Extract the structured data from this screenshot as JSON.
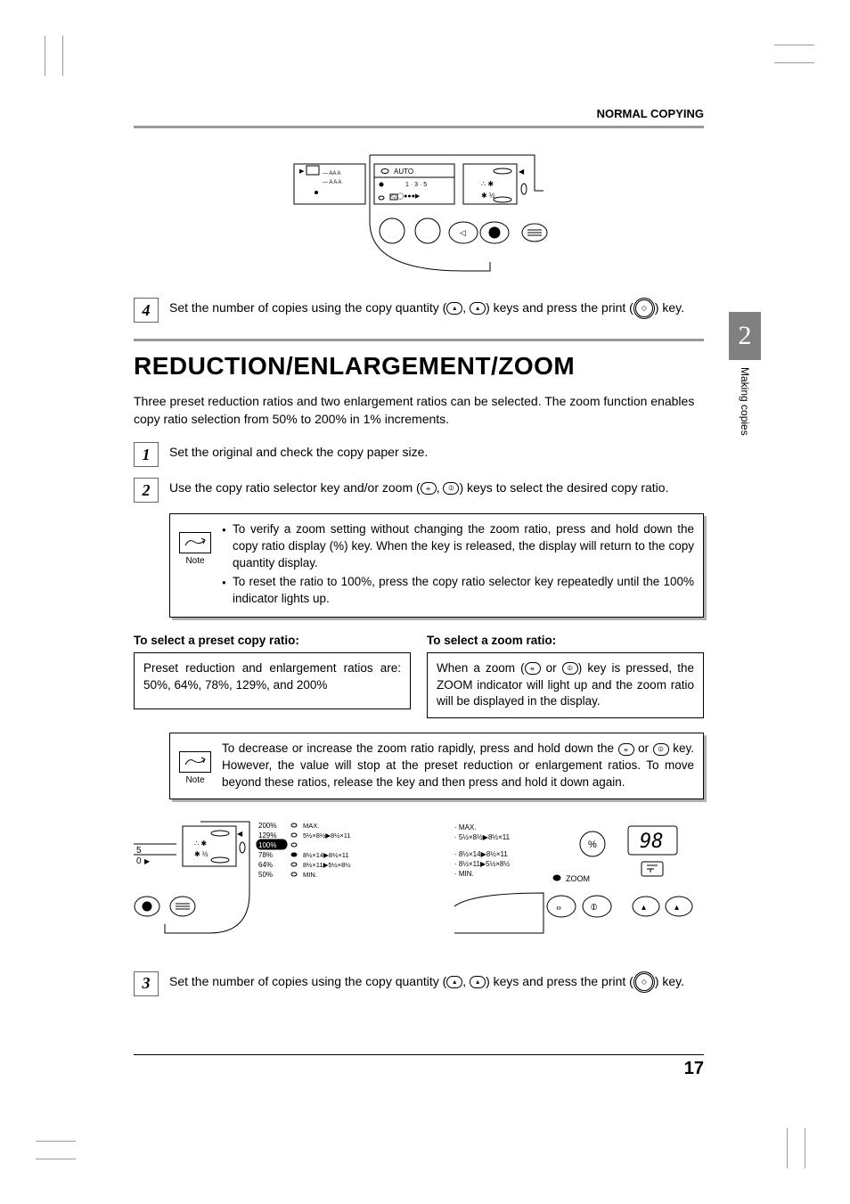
{
  "header": {
    "section": "NORMAL COPYING"
  },
  "chapter": {
    "number": "2",
    "label": "Making copies"
  },
  "step4": {
    "number": "4",
    "text_before": "Set the number of copies using the copy quantity (",
    "text_mid": ", ",
    "text_after": ") keys and press the print (",
    "text_end": ") key."
  },
  "section_title": "REDUCTION/ENLARGEMENT/ZOOM",
  "intro": "Three preset reduction ratios and two enlargement ratios can be selected. The zoom function enables copy ratio selection from 50% to 200% in 1% increments.",
  "step1": {
    "number": "1",
    "text": "Set the original and check the copy paper size."
  },
  "step2": {
    "number": "2",
    "text_before": "Use the copy ratio selector key and/or zoom (",
    "text_mid": ", ",
    "text_after": ") keys to select the desired copy ratio."
  },
  "note1": {
    "label": "Note",
    "bullet1": "To verify a zoom setting without changing the zoom ratio, press and hold down the  copy ratio display (%) key. When the key is released, the display will return to the copy quantity display.",
    "bullet2": "To reset the ratio to 100%, press the copy ratio selector key repeatedly until the 100% indicator lights up."
  },
  "preset": {
    "heading": "To select a preset copy ratio:",
    "body": "Preset reduction and enlargement ratios are: 50%, 64%, 78%, 129%, and 200%"
  },
  "zoom": {
    "heading": "To select a zoom ratio:",
    "body_before": "When a zoom (",
    "body_mid": " or ",
    "body_after": ") key is pressed, the ZOOM indicator will light up and the zoom ratio will be displayed in the display."
  },
  "note2": {
    "label": "Note",
    "text_before": "To decrease or increase the zoom ratio rapidly, press and hold down the ",
    "text_mid": " or ",
    "text_after": " key. However, the value will stop at the preset reduction or enlargement ratios. To move beyond these ratios, release the key and then press and hold it down again."
  },
  "preset_diagram": {
    "ratios": [
      {
        "pct": "200%",
        "note": "MAX."
      },
      {
        "pct": "129%",
        "note": "5½×8½▶8½×11"
      },
      {
        "pct": "100%",
        "note": "",
        "highlighted": true
      },
      {
        "pct": "78%",
        "note": "8½×14▶8½×11"
      },
      {
        "pct": "64%",
        "note": "8½×11▶5½×8½"
      },
      {
        "pct": "50%",
        "note": "MIN."
      }
    ],
    "panel_labels": {
      "five": "5",
      "zero": "0"
    }
  },
  "zoom_diagram": {
    "labels": [
      "MAX.",
      "5½×8½▶8½×11",
      "8½×14▶8½×11",
      "8½×11▶5½×8½",
      "MIN."
    ],
    "pct_key": "%",
    "zoom_label": "ZOOM",
    "display": "98"
  },
  "step3": {
    "number": "3",
    "text_before": "Set the number of copies using the copy quantity (",
    "text_mid": ", ",
    "text_after": ") keys and press the print (",
    "text_end": ") key."
  },
  "top_panel": {
    "auto": "AUTO",
    "digits": "1 · 3 · 5"
  },
  "page_number": "17"
}
